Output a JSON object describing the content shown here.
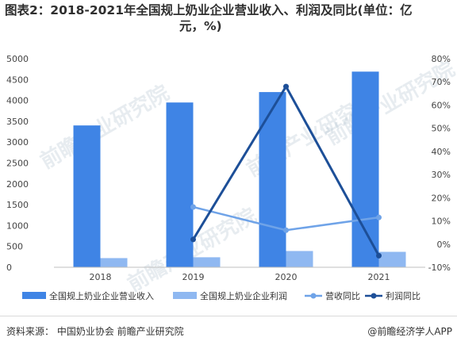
{
  "title": {
    "line1": "图表2：2018-2021年全国规上奶业企业营业收入、利润及同比(单位：亿",
    "line2": "元，%)"
  },
  "footer": {
    "source": "资料来源： 中国奶业协会 前瞻产业研究院",
    "brand": "@前瞻经济学人APP"
  },
  "watermark": "前瞻产业研究院",
  "chart_data": {
    "type": "bar",
    "categories": [
      "2018",
      "2019",
      "2020",
      "2021"
    ],
    "series": [
      {
        "name": "全国规上奶业企业营业收入",
        "type": "bar",
        "axis": "left",
        "color": "#3f84e5",
        "values": [
          3400,
          3950,
          4200,
          4690
        ]
      },
      {
        "name": "全国规上奶业企业利润",
        "type": "bar",
        "axis": "left",
        "color": "#8fb8f1",
        "values": [
          220,
          240,
          390,
          370
        ]
      },
      {
        "name": "营收同比",
        "type": "line",
        "axis": "right",
        "color": "#6fa3e8",
        "values": [
          null,
          16,
          6,
          11.5
        ]
      },
      {
        "name": "利润同比",
        "type": "line",
        "axis": "right",
        "color": "#1d4f98",
        "values": [
          null,
          2,
          68,
          -5
        ]
      }
    ],
    "yleft": {
      "min": 0,
      "max": 5000,
      "ticks": [
        "0",
        "500",
        "1000",
        "1500",
        "2000",
        "2500",
        "3000",
        "3500",
        "4000",
        "4500",
        "5000"
      ]
    },
    "yright": {
      "min": -10,
      "max": 80,
      "ticks": [
        "-10%",
        "0%",
        "10%",
        "20%",
        "30%",
        "40%",
        "50%",
        "60%",
        "70%",
        "80%"
      ]
    },
    "legend_position": "bottom"
  }
}
